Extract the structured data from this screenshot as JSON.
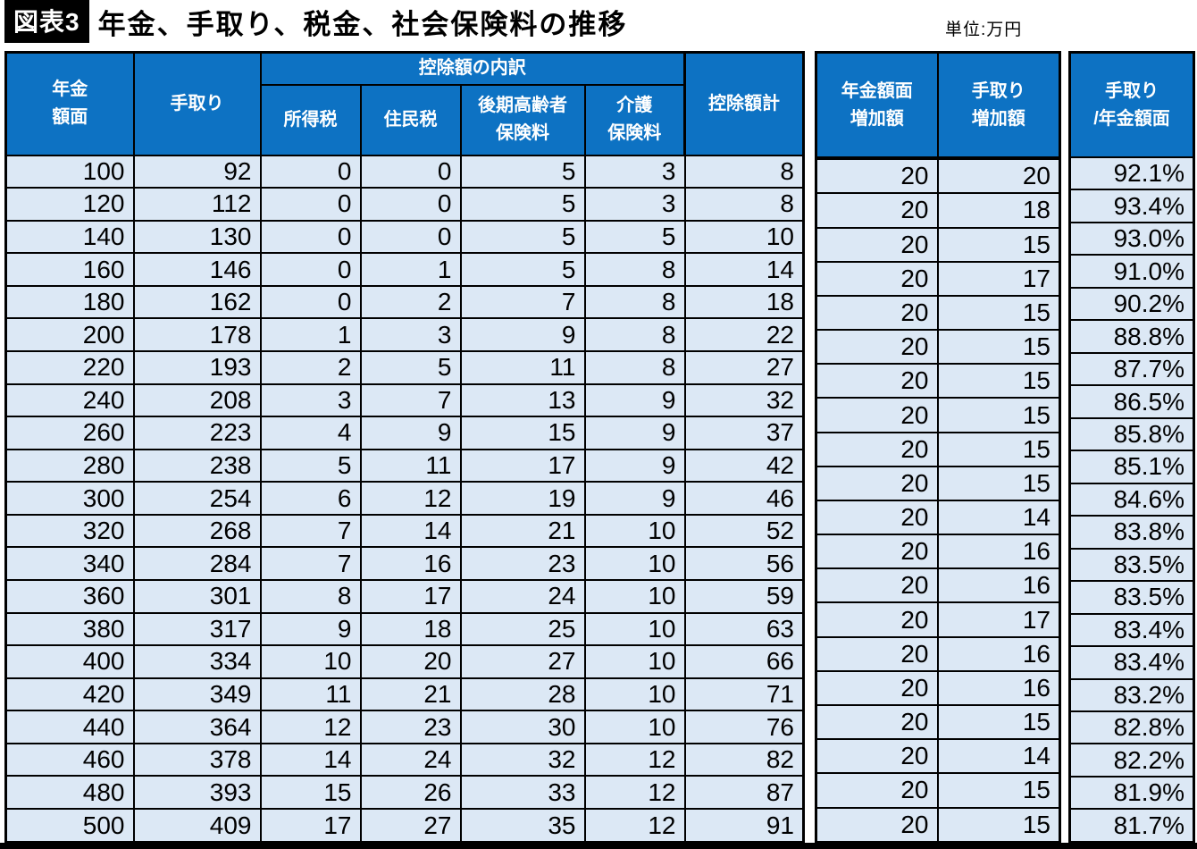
{
  "header": {
    "badge": "図表3",
    "title": "年金、手取り、税金、社会保険料の推移",
    "unit": "単位:万円"
  },
  "colors": {
    "header_bg": "#0d72c3",
    "cell_bg": "#dce8f5",
    "border": "#000000",
    "badge_bg": "#000000"
  },
  "labels": {
    "col_pension": "年金\n額面",
    "col_takehome": "手取り",
    "group_deductions": "控除額の内訳",
    "col_income_tax": "所得税",
    "col_resident_tax": "住民税",
    "col_elderly": "後期高齢者\n保険料",
    "col_care": "介護\n保険料",
    "col_deduction_total": "控除額計",
    "col_pension_increase": "年金額面\n増加額",
    "col_takehome_increase": "手取り\n増加額",
    "col_ratio": "手取り\n/年金額面"
  },
  "chart_data": {
    "type": "table",
    "title": "年金、手取り、税金、社会保険料の推移",
    "unit": "万円",
    "main_table": {
      "columns": [
        "年金額面",
        "手取り",
        "所得税",
        "住民税",
        "後期高齢者保険料",
        "介護保険料",
        "控除額計"
      ],
      "group_header": {
        "label": "控除額の内訳",
        "spans": [
          "所得税",
          "住民税",
          "後期高齢者保険料",
          "介護保険料"
        ]
      },
      "rows": [
        [
          100,
          92,
          0,
          0,
          5,
          3,
          8
        ],
        [
          120,
          112,
          0,
          0,
          5,
          3,
          8
        ],
        [
          140,
          130,
          0,
          0,
          5,
          5,
          10
        ],
        [
          160,
          146,
          0,
          1,
          5,
          8,
          14
        ],
        [
          180,
          162,
          0,
          2,
          7,
          8,
          18
        ],
        [
          200,
          178,
          1,
          3,
          9,
          8,
          22
        ],
        [
          220,
          193,
          2,
          5,
          11,
          8,
          27
        ],
        [
          240,
          208,
          3,
          7,
          13,
          9,
          32
        ],
        [
          260,
          223,
          4,
          9,
          15,
          9,
          37
        ],
        [
          280,
          238,
          5,
          11,
          17,
          9,
          42
        ],
        [
          300,
          254,
          6,
          12,
          19,
          9,
          46
        ],
        [
          320,
          268,
          7,
          14,
          21,
          10,
          52
        ],
        [
          340,
          284,
          7,
          16,
          23,
          10,
          56
        ],
        [
          360,
          301,
          8,
          17,
          24,
          10,
          59
        ],
        [
          380,
          317,
          9,
          18,
          25,
          10,
          63
        ],
        [
          400,
          334,
          10,
          20,
          27,
          10,
          66
        ],
        [
          420,
          349,
          11,
          21,
          28,
          10,
          71
        ],
        [
          440,
          364,
          12,
          23,
          30,
          10,
          76
        ],
        [
          460,
          378,
          14,
          24,
          32,
          12,
          82
        ],
        [
          480,
          393,
          15,
          26,
          33,
          12,
          87
        ],
        [
          500,
          409,
          17,
          27,
          35,
          12,
          91
        ]
      ]
    },
    "increase_table": {
      "columns": [
        "年金額面増加額",
        "手取り増加額"
      ],
      "rows": [
        [
          "",
          ""
        ],
        [
          20,
          20
        ],
        [
          20,
          18
        ],
        [
          20,
          15
        ],
        [
          20,
          17
        ],
        [
          20,
          15
        ],
        [
          20,
          15
        ],
        [
          20,
          15
        ],
        [
          20,
          15
        ],
        [
          20,
          15
        ],
        [
          20,
          15
        ],
        [
          20,
          14
        ],
        [
          20,
          16
        ],
        [
          20,
          16
        ],
        [
          20,
          17
        ],
        [
          20,
          16
        ],
        [
          20,
          16
        ],
        [
          20,
          15
        ],
        [
          20,
          14
        ],
        [
          20,
          15
        ],
        [
          20,
          15
        ]
      ]
    },
    "ratio_table": {
      "columns": [
        "手取り/年金額面"
      ],
      "rows": [
        "92.1%",
        "93.4%",
        "93.0%",
        "91.0%",
        "90.2%",
        "88.8%",
        "87.7%",
        "86.5%",
        "85.8%",
        "85.1%",
        "84.6%",
        "83.8%",
        "83.5%",
        "83.5%",
        "83.4%",
        "83.4%",
        "83.2%",
        "82.8%",
        "82.2%",
        "81.9%",
        "81.7%"
      ]
    }
  }
}
